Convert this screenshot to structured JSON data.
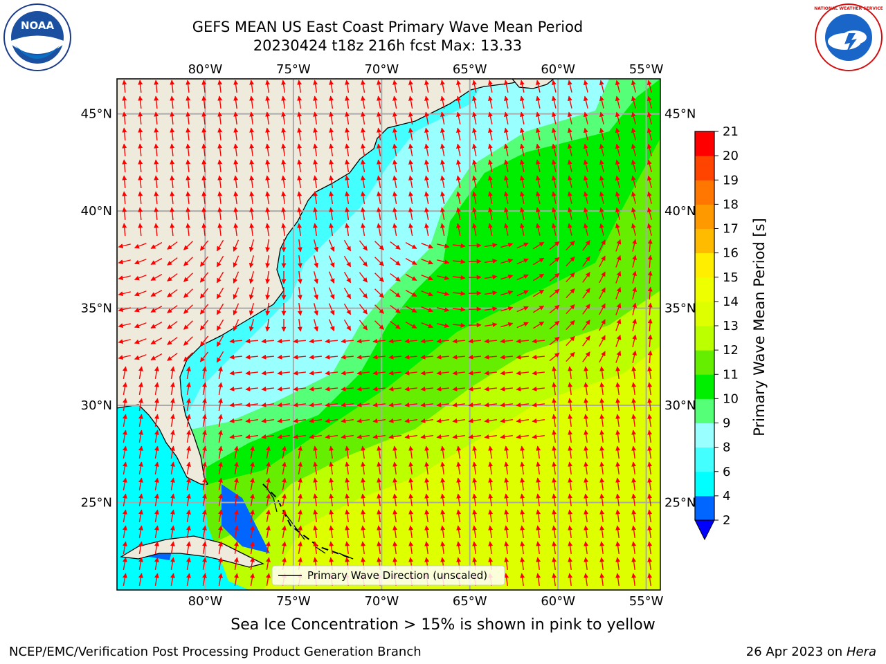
{
  "header": {
    "title_line1": "GEFS MEAN US East Coast Primary Wave Mean Period",
    "title_line2": "20230424 t18z 216h fcst   Max: 13.33"
  },
  "logos": {
    "left": {
      "icon": "noaa-logo-icon",
      "text": "NOAA"
    },
    "right": {
      "icon": "national-weather-service-logo-icon",
      "text": "NATIONAL WEATHER SERVICE"
    }
  },
  "map": {
    "lon_ticks": [
      "80°W",
      "75°W",
      "70°W",
      "65°W",
      "60°W",
      "55°W"
    ],
    "lat_ticks": [
      "45°N",
      "40°N",
      "35°N",
      "30°N",
      "25°N"
    ],
    "lon_range": [
      -85,
      -54.2
    ],
    "lat_range": [
      20.5,
      46.8
    ],
    "legend_label": "Primary Wave Direction (unscaled)",
    "arrow_color": "#ff0000",
    "land_color": "#efebdc",
    "grid": true
  },
  "colorbar": {
    "label": "Primary Wave Mean Period [s]",
    "ticks": [
      "21",
      "20",
      "19",
      "18",
      "17",
      "16",
      "15",
      "14",
      "13",
      "12",
      "11",
      "10",
      "9",
      "8",
      "6",
      "4",
      "2"
    ],
    "bins": [
      {
        "from": 2,
        "to": 4,
        "color": "#0066ff"
      },
      {
        "from": 4,
        "to": 6,
        "color": "#00ffff"
      },
      {
        "from": 6,
        "to": 8,
        "color": "#44ffff"
      },
      {
        "from": 8,
        "to": 9,
        "color": "#99ffff"
      },
      {
        "from": 9,
        "to": 10,
        "color": "#55ff77"
      },
      {
        "from": 10,
        "to": 11,
        "color": "#00ee00"
      },
      {
        "from": 11,
        "to": 12,
        "color": "#66ee00"
      },
      {
        "from": 12,
        "to": 13,
        "color": "#bbff00"
      },
      {
        "from": 13,
        "to": 14,
        "color": "#ddff00"
      },
      {
        "from": 14,
        "to": 15,
        "color": "#eeff00"
      },
      {
        "from": 15,
        "to": 16,
        "color": "#ffee00"
      },
      {
        "from": 16,
        "to": 17,
        "color": "#ffbb00"
      },
      {
        "from": 17,
        "to": 18,
        "color": "#ff9900"
      },
      {
        "from": 18,
        "to": 19,
        "color": "#ff7700"
      },
      {
        "from": 19,
        "to": 20,
        "color": "#ff4400"
      },
      {
        "from": 20,
        "to": 21,
        "color": "#ff0000"
      }
    ],
    "under_color": "#0000ff"
  },
  "notes": {
    "sea_ice": "Sea Ice Concentration > 15% is shown in pink to yellow"
  },
  "footer": {
    "left": "NCEP/EMC/Verification Post Processing Product Generation Branch",
    "right_date": "26 Apr 2023 on ",
    "right_machine": "Hera"
  }
}
